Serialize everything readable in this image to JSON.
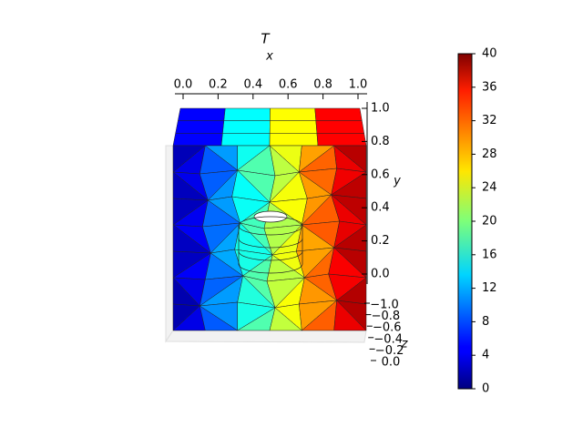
{
  "chart_data": {
    "type": "surface3d",
    "title": "T",
    "xlabel": "x",
    "ylabel": "y",
    "zlabel": "z",
    "xlim": [
      0,
      1
    ],
    "ylim": [
      0,
      1
    ],
    "zlim": [
      -1,
      0
    ],
    "xticks": [
      {
        "value": 0,
        "label": "0.0"
      },
      {
        "value": 0.2,
        "label": "0.2"
      },
      {
        "value": 0.4,
        "label": "0.4"
      },
      {
        "value": 0.6,
        "label": "0.6"
      },
      {
        "value": 0.8,
        "label": "0.8"
      },
      {
        "value": 1,
        "label": "1.0"
      }
    ],
    "yticks": [
      {
        "value": 0,
        "label": "0.0"
      },
      {
        "value": 0.2,
        "label": "0.2"
      },
      {
        "value": 0.4,
        "label": "0.4"
      },
      {
        "value": 0.6,
        "label": "0.6"
      },
      {
        "value": 0.8,
        "label": "0.8"
      },
      {
        "value": 1,
        "label": "1.0"
      }
    ],
    "zticks": [
      {
        "value": -1,
        "label": "−1.0"
      },
      {
        "value": -0.8,
        "label": "−0.8"
      },
      {
        "value": -0.6,
        "label": "−0.6"
      },
      {
        "value": -0.4,
        "label": "−0.4"
      },
      {
        "value": -0.2,
        "label": "−0.2"
      },
      {
        "value": 0,
        "label": "0.0"
      }
    ],
    "colormap": "jet",
    "clim": [
      0,
      40
    ],
    "cticks": [
      0,
      4,
      8,
      12,
      16,
      20,
      24,
      28,
      32,
      36,
      40
    ]
  }
}
